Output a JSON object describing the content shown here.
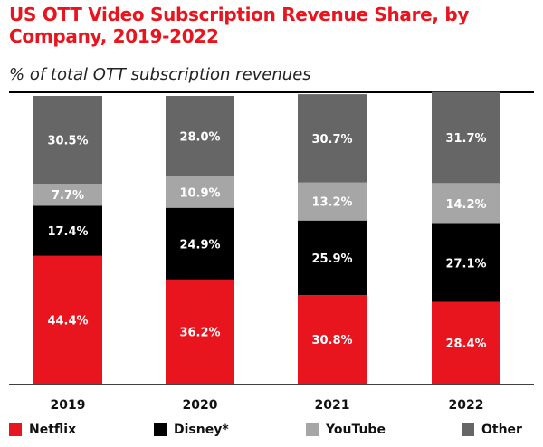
{
  "header": {
    "title": "US OTT Video Subscription Revenue Share, by Company, 2019-2022",
    "subtitle": "% of total OTT subscription revenues"
  },
  "colors": {
    "Netflix": "#e8151e",
    "Disney*": "#000000",
    "YouTube": "#a6a6a6",
    "Other": "#666666",
    "title": "#e8151e"
  },
  "chart_data": {
    "type": "bar",
    "stacked": true,
    "categories": [
      "2019",
      "2020",
      "2021",
      "2022"
    ],
    "series": [
      {
        "name": "Netflix",
        "values": [
          44.4,
          36.2,
          30.8,
          28.4
        ],
        "labels": [
          "44.4%",
          "36.2%",
          "30.8%",
          "28.4%"
        ]
      },
      {
        "name": "Disney*",
        "values": [
          17.4,
          24.9,
          25.9,
          27.1
        ],
        "labels": [
          "17.4%",
          "24.9%",
          "25.9%",
          "27.1%"
        ]
      },
      {
        "name": "YouTube",
        "values": [
          7.7,
          10.9,
          13.2,
          14.2
        ],
        "labels": [
          "7.7%",
          "10.9%",
          "13.2%",
          "14.2%"
        ]
      },
      {
        "name": "Other",
        "values": [
          30.5,
          28.0,
          30.7,
          31.7
        ],
        "labels": [
          "30.5%",
          "28.0%",
          "30.7%",
          "31.7%"
        ]
      }
    ],
    "title": "US OTT Video Subscription Revenue Share, by Company, 2019-2022",
    "subtitle": "% of total OTT subscription revenues",
    "ylim": [
      0,
      100
    ],
    "grid": false,
    "legend": "bottom"
  }
}
